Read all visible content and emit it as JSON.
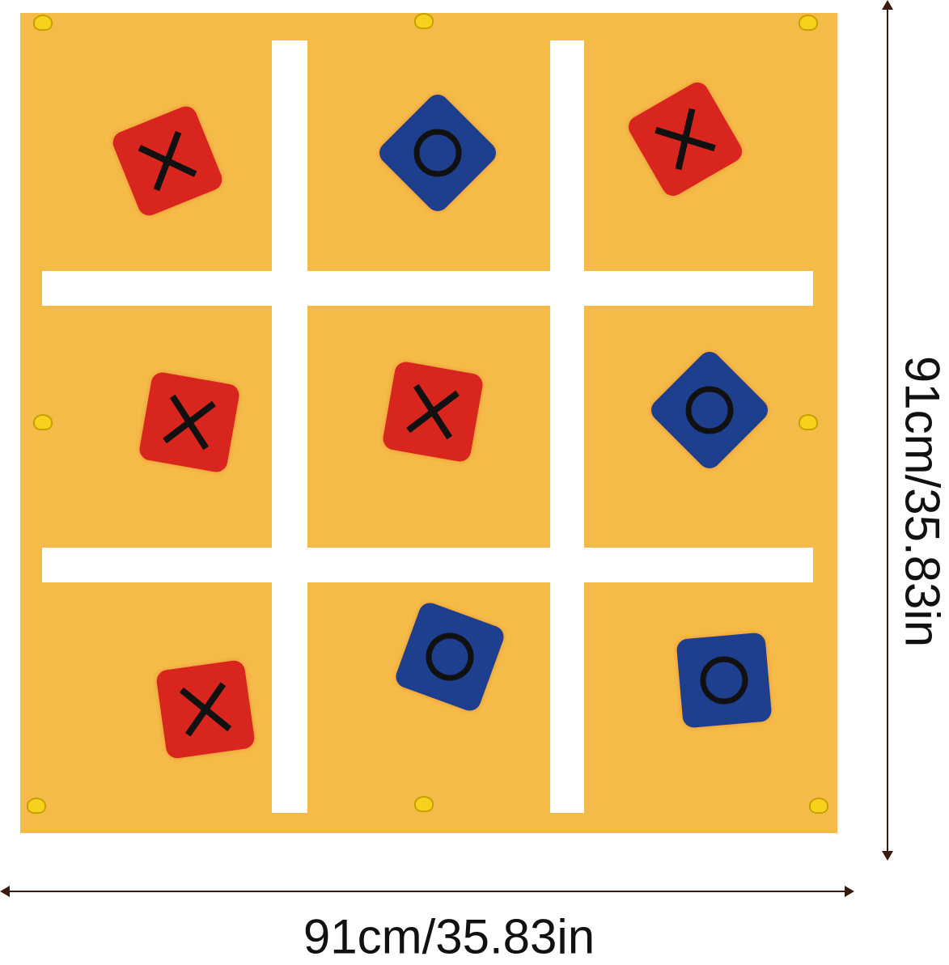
{
  "board": {
    "cells": [
      "X",
      "O",
      "X",
      "X",
      "X",
      "O",
      "X",
      "O",
      "O"
    ]
  },
  "colors": {
    "mat": "#F5BB48",
    "x_bag": "#D8261F",
    "o_bag": "#1E3E8E",
    "lines": "#FFFFFF",
    "symbol": "#111111"
  },
  "dimensions": {
    "width_label": "91cm/35.83in",
    "height_label": "91cm/35.83in"
  }
}
